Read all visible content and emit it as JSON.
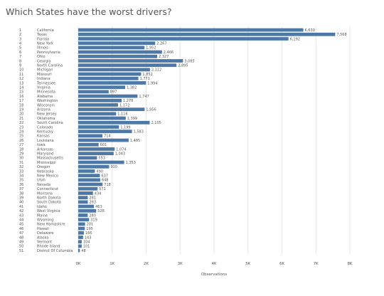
{
  "chart_data": {
    "type": "bar",
    "orientation": "horizontal",
    "title": "Which States have the worst drivers?",
    "xlabel": "Observations",
    "xlim": [
      0,
      8000
    ],
    "x_ticks": [
      "0K",
      "1K",
      "2K",
      "3K",
      "4K",
      "5K",
      "6K",
      "7K",
      "8K"
    ],
    "grid": true,
    "bar_color": "#4e79a7",
    "rows": [
      {
        "rank": "1",
        "state": "California",
        "value": 6630,
        "label": "6,630"
      },
      {
        "rank": "2",
        "state": "Texas",
        "value": 7568,
        "label": "7,568"
      },
      {
        "rank": "3",
        "state": "Florida",
        "value": 6192,
        "label": "6,192"
      },
      {
        "rank": "4",
        "state": "New York",
        "value": 2267,
        "label": "2,267"
      },
      {
        "rank": "5",
        "state": "Illinois",
        "value": 1952,
        "label": "1,952"
      },
      {
        "rank": "6",
        "state": "Pennsylvania",
        "value": 2466,
        "label": "2,466"
      },
      {
        "rank": "7",
        "state": "Ohio",
        "value": 2327,
        "label": "2,327"
      },
      {
        "rank": "8",
        "state": "Georgia",
        "value": 3085,
        "label": "3,085"
      },
      {
        "rank": "9",
        "state": "North Carolina",
        "value": 2895,
        "label": "2,895"
      },
      {
        "rank": "10",
        "state": "Michigan",
        "value": 2112,
        "label": "2,112"
      },
      {
        "rank": "11",
        "state": "Missouri",
        "value": 1852,
        "label": "1,852"
      },
      {
        "rank": "12",
        "state": "Indiana",
        "value": 1771,
        "label": "1,771"
      },
      {
        "rank": "13",
        "state": "Tennessee",
        "value": 1994,
        "label": "1,994"
      },
      {
        "rank": "14",
        "state": "Virginia",
        "value": 1382,
        "label": "1,382"
      },
      {
        "rank": "15",
        "state": "Minnesota",
        "value": 897,
        "label": "897"
      },
      {
        "rank": "16",
        "state": "Alabama",
        "value": 1747,
        "label": "1,747"
      },
      {
        "rank": "17",
        "state": "Washington",
        "value": 1278,
        "label": "1,278"
      },
      {
        "rank": "18",
        "state": "Wisconsin",
        "value": 1172,
        "label": "1,172"
      },
      {
        "rank": "19",
        "state": "Arizona",
        "value": 1956,
        "label": "1,956"
      },
      {
        "rank": "20",
        "state": "New Jersey",
        "value": 1116,
        "label": "1,116"
      },
      {
        "rank": "21",
        "state": "Oklahoma",
        "value": 1399,
        "label": "1,399"
      },
      {
        "rank": "22",
        "state": "South Carolina",
        "value": 2105,
        "label": "2,105"
      },
      {
        "rank": "23",
        "state": "Colorado",
        "value": 1199,
        "label": "1,199"
      },
      {
        "rank": "24",
        "state": "Kentucky",
        "value": 1583,
        "label": "1,583"
      },
      {
        "rank": "25",
        "state": "Kansas",
        "value": 714,
        "label": "714"
      },
      {
        "rank": "26",
        "state": "Louisiana",
        "value": 1485,
        "label": "1,485"
      },
      {
        "rank": "27",
        "state": "Iowa",
        "value": 601,
        "label": "601"
      },
      {
        "rank": "28",
        "state": "Arkansas",
        "value": 1074,
        "label": "1,074"
      },
      {
        "rank": "29",
        "state": "Maryland",
        "value": 1043,
        "label": "1,043"
      },
      {
        "rank": "30",
        "state": "Massachusetts",
        "value": 553,
        "label": "553"
      },
      {
        "rank": "31",
        "state": "Mississippi",
        "value": 1353,
        "label": "1,353"
      },
      {
        "rank": "32",
        "state": "Oregon",
        "value": 910,
        "label": "910"
      },
      {
        "rank": "33",
        "state": "Nebraska",
        "value": 490,
        "label": "490"
      },
      {
        "rank": "34",
        "state": "New Mexico",
        "value": 637,
        "label": "637"
      },
      {
        "rank": "35",
        "state": "Utah",
        "value": 648,
        "label": "648"
      },
      {
        "rank": "36",
        "state": "Nevada",
        "value": 718,
        "label": "718"
      },
      {
        "rank": "37",
        "state": "Connecticut",
        "value": 571,
        "label": "571"
      },
      {
        "rank": "38",
        "state": "Montana",
        "value": 434,
        "label": "434"
      },
      {
        "rank": "39",
        "state": "North Dakota",
        "value": 281,
        "label": "281"
      },
      {
        "rank": "40",
        "state": "South Dakota",
        "value": 283,
        "label": "283"
      },
      {
        "rank": "41",
        "state": "Idaho",
        "value": 463,
        "label": "463"
      },
      {
        "rank": "42",
        "state": "West Virginia",
        "value": 528,
        "label": "528"
      },
      {
        "rank": "43",
        "state": "Maine",
        "value": 280,
        "label": "280"
      },
      {
        "rank": "44",
        "state": "Wyoming",
        "value": 319,
        "label": "319"
      },
      {
        "rank": "45",
        "state": "New Hampshire",
        "value": 201,
        "label": "201"
      },
      {
        "rank": "46",
        "state": "Hawaii",
        "value": 195,
        "label": "195"
      },
      {
        "rank": "47",
        "state": "Delaware",
        "value": 166,
        "label": "166"
      },
      {
        "rank": "48",
        "state": "Alaska",
        "value": 143,
        "label": "143"
      },
      {
        "rank": "49",
        "state": "Vermont",
        "value": 104,
        "label": "104"
      },
      {
        "rank": "50",
        "state": "Rhode Island",
        "value": 101,
        "label": "101"
      },
      {
        "rank": "51",
        "state": "District Of Columbia",
        "value": 48,
        "label": "48"
      }
    ]
  }
}
